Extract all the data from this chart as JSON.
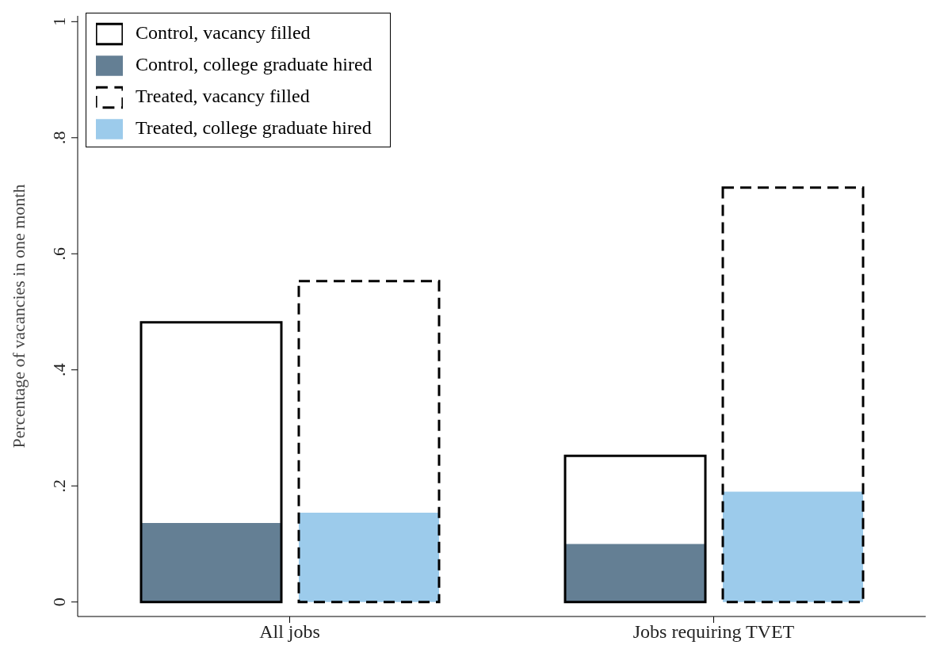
{
  "chart_data": {
    "type": "bar",
    "ylabel": "Percentage of vacancies in one month",
    "categories": [
      "All jobs",
      "Jobs requiring TVET"
    ],
    "series": [
      {
        "name": "Control, vacancy filled",
        "color": "#000000",
        "line_style": "solid",
        "values": [
          0.482,
          0.252
        ]
      },
      {
        "name": "Control, college graduate hired",
        "color": "#647f94",
        "values": [
          0.136,
          0.1
        ]
      },
      {
        "name": "Treated, vacancy filled",
        "color": "#000000",
        "line_style": "dashed",
        "values": [
          0.553,
          0.714
        ]
      },
      {
        "name": "Treated, college graduate hired",
        "color": "#9ccbeb",
        "values": [
          0.154,
          0.19
        ]
      }
    ],
    "ylim": [
      -0.025,
      1.01
    ],
    "yticks": [
      0,
      {
        "value": 0.2,
        "label": ".2"
      },
      {
        "value": 0.4,
        "label": ".4"
      },
      {
        "value": 0.6,
        "label": ".6"
      },
      {
        "value": 0.8,
        "label": ".8"
      },
      1
    ],
    "legend": "top left",
    "grid": false
  }
}
